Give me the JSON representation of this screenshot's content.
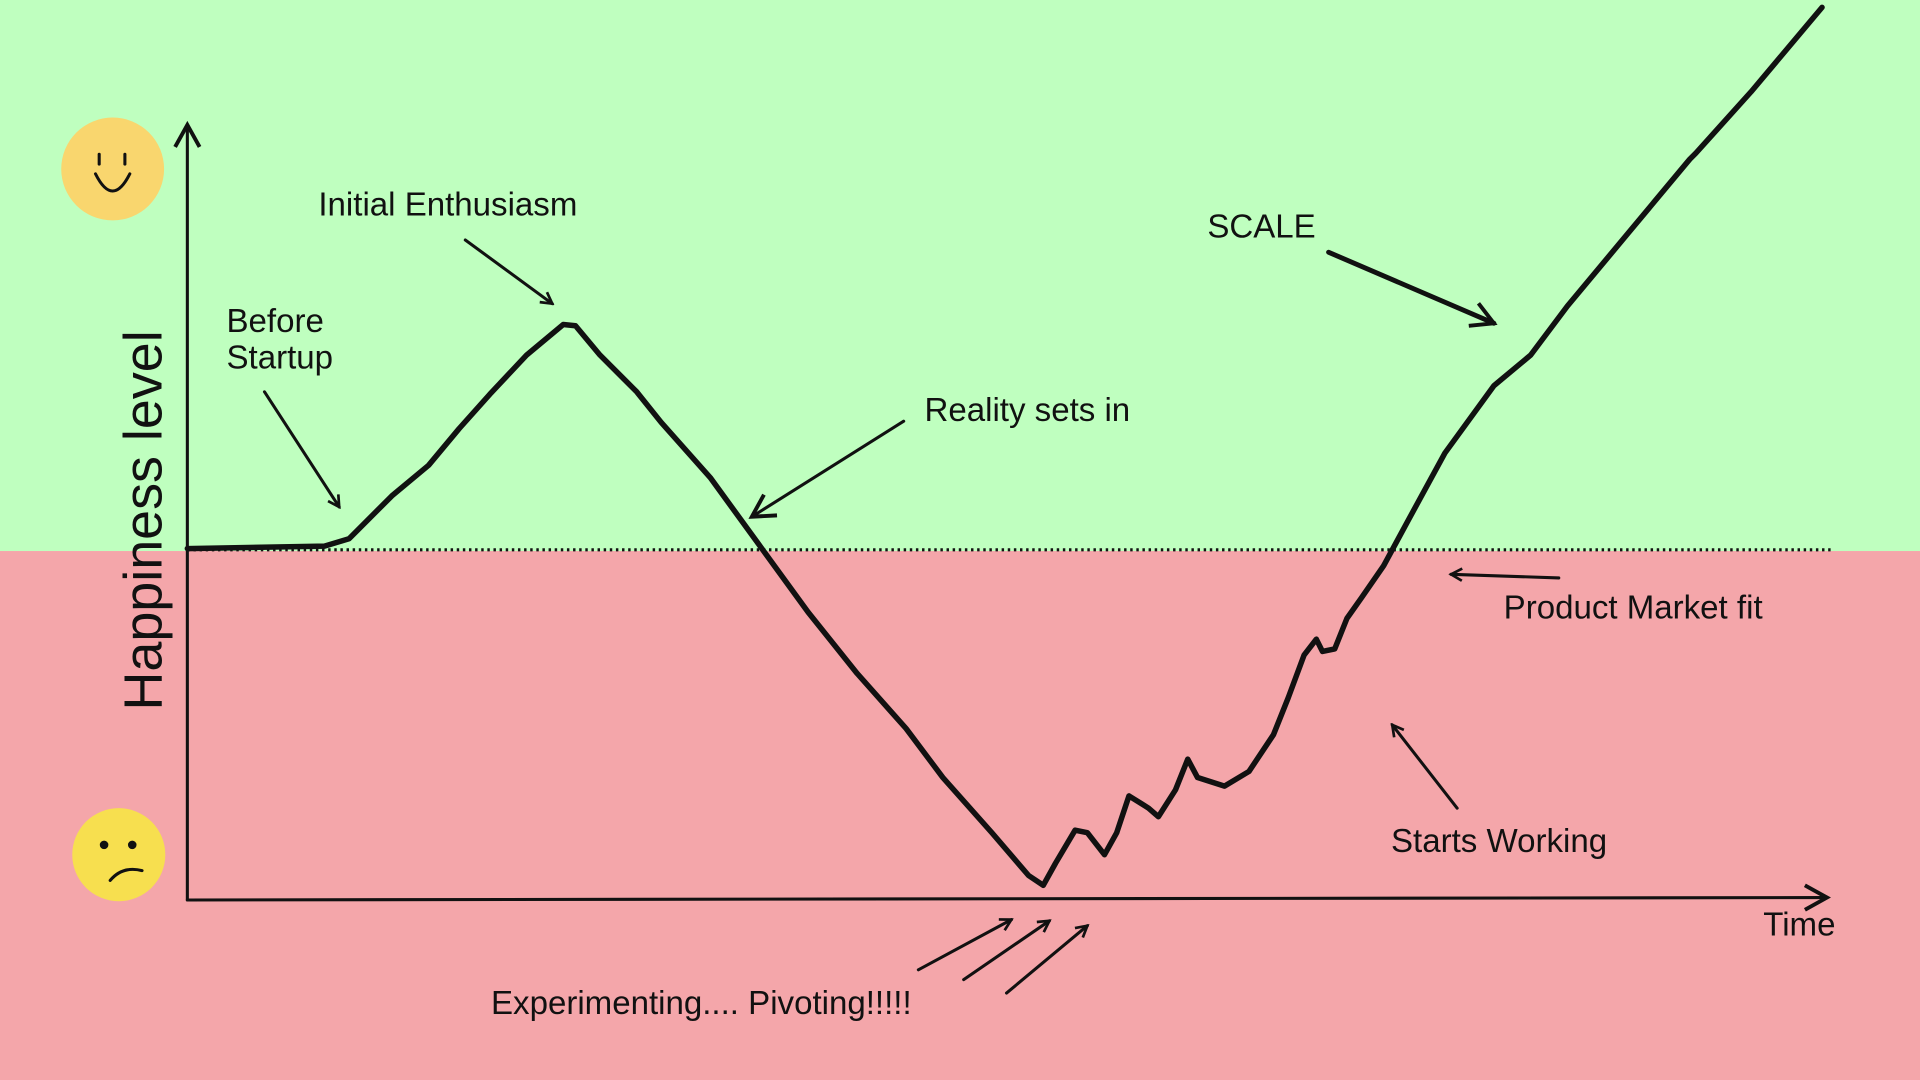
{
  "y_axis_label": "Happiness level",
  "x_axis_label": "Time",
  "annotations": {
    "before_startup": [
      "Before",
      "Startup"
    ],
    "initial_enthusiasm": "Initial Enthusiasm",
    "reality_sets_in": "Reality sets in",
    "scale": "SCALE",
    "product_market_fit": "Product Market fit",
    "starts_working": "Starts Working",
    "experimenting": "Experimenting.... Pivoting!!!!!"
  }
}
